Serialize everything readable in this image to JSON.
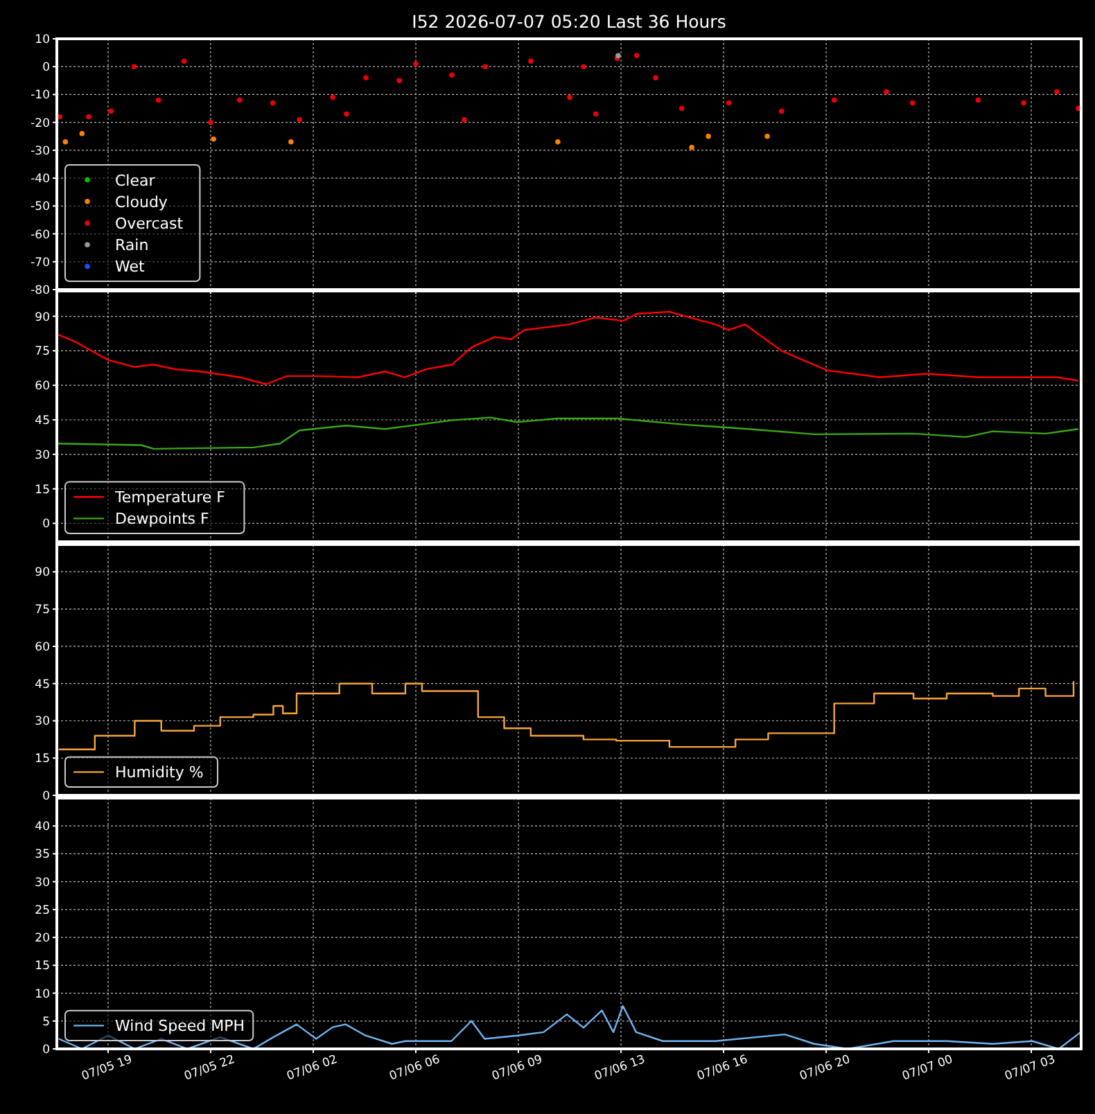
{
  "chart_data": [
    {
      "type": "scatter",
      "title": "I52 2026-07-07 05:20 Last 36 Hours",
      "xlim": [
        "2026-07-05T17:24",
        "2026-07-07T05:21"
      ],
      "xticks": [
        {
          "value": "2026-07-05T19:12",
          "label": null
        },
        {
          "value": "2026-07-05T22:48",
          "label": null
        },
        {
          "value": "2026-07-06T02:24",
          "label": null
        },
        {
          "value": "2026-07-06T06:00",
          "label": null
        },
        {
          "value": "2026-07-06T09:36",
          "label": null
        },
        {
          "value": "2026-07-06T13:12",
          "label": null
        },
        {
          "value": "2026-07-06T16:48",
          "label": null
        },
        {
          "value": "2026-07-06T20:24",
          "label": null
        },
        {
          "value": "2026-07-07T00:00",
          "label": null
        },
        {
          "value": "2026-07-07T03:36",
          "label": null
        }
      ],
      "ylim": [
        -80,
        10
      ],
      "yticks": [
        -80,
        -70,
        -60,
        -50,
        -40,
        -30,
        -20,
        -10,
        0,
        10
      ],
      "grid": true,
      "legend": "bottom left",
      "marker": "circle",
      "tick_labels": "y",
      "series": [
        {
          "name": "Clear",
          "color": "#00c000"
        },
        {
          "name": "Cloudy",
          "color": "#ff8000",
          "x": [
            "2026-07-05T17:42",
            "2026-07-05T18:17",
            "2026-07-05T22:54",
            "2026-07-06T01:37",
            "2026-07-06T10:59",
            "2026-07-06T15:41",
            "2026-07-06T16:16",
            "2026-07-06T18:20"
          ],
          "values": [
            -27,
            -24,
            -26,
            -27,
            -27,
            -29,
            -25,
            -25
          ]
        },
        {
          "name": "Overcast",
          "color": "#ee0000",
          "x": [
            "2026-07-05T17:30",
            "2026-07-05T18:31",
            "2026-07-05T19:18",
            "2026-07-05T20:07",
            "2026-07-05T20:58",
            "2026-07-05T21:52",
            "2026-07-05T22:48",
            "2026-07-05T23:49",
            "2026-07-06T00:59",
            "2026-07-06T01:55",
            "2026-07-06T03:05",
            "2026-07-06T03:34",
            "2026-07-06T04:15",
            "2026-07-06T05:25",
            "2026-07-06T06:00",
            "2026-07-06T07:16",
            "2026-07-06T07:42",
            "2026-07-06T08:26",
            "2026-07-06T10:02",
            "2026-07-06T11:24",
            "2026-07-06T11:53",
            "2026-07-06T12:19",
            "2026-07-06T13:04",
            "2026-07-06T13:45",
            "2026-07-06T14:25",
            "2026-07-06T15:20",
            "2026-07-06T16:59",
            "2026-07-06T18:50",
            "2026-07-06T20:41",
            "2026-07-06T22:31",
            "2026-07-06T23:26",
            "2026-07-07T01:44",
            "2026-07-07T03:20",
            "2026-07-07T04:30",
            "2026-07-07T05:15"
          ],
          "values": [
            -18,
            -18,
            -16,
            0,
            -12,
            2,
            -20,
            -12,
            -13,
            -19,
            -11,
            -17,
            -4,
            -5,
            1,
            -3,
            -19,
            0,
            2,
            -11,
            0,
            -17,
            3,
            4,
            -4,
            -15,
            -13,
            -16,
            -12,
            -9,
            -13,
            -12,
            -13,
            -9,
            -15
          ]
        },
        {
          "name": "Rain",
          "color": "#9a9a9a",
          "x": [
            "2026-07-06T13:06"
          ],
          "values": [
            4
          ]
        },
        {
          "name": "Wet",
          "color": "#1f4fff"
        }
      ]
    },
    {
      "type": "line",
      "xlim": [
        "2026-07-05T17:24",
        "2026-07-07T05:21"
      ],
      "xticks": [
        {
          "value": "2026-07-05T19:12",
          "label": null
        },
        {
          "value": "2026-07-05T22:48",
          "label": null
        },
        {
          "value": "2026-07-06T02:24",
          "label": null
        },
        {
          "value": "2026-07-06T06:00",
          "label": null
        },
        {
          "value": "2026-07-06T09:36",
          "label": null
        },
        {
          "value": "2026-07-06T13:12",
          "label": null
        },
        {
          "value": "2026-07-06T16:48",
          "label": null
        },
        {
          "value": "2026-07-06T20:24",
          "label": null
        },
        {
          "value": "2026-07-07T00:00",
          "label": null
        },
        {
          "value": "2026-07-07T03:36",
          "label": null
        }
      ],
      "ylim": [
        -8,
        101
      ],
      "yticks": [
        0,
        15,
        30,
        45,
        60,
        75,
        90
      ],
      "grid": true,
      "legend": "bottom left",
      "tick_labels": "y",
      "series": [
        {
          "name": "Temperature F",
          "color": "#ff0000",
          "x": [
            "2026-07-05T17:27",
            "2026-07-05T18:02",
            "2026-07-05T19:12",
            "2026-07-05T20:07",
            "2026-07-05T20:48",
            "2026-07-05T21:32",
            "2026-07-05T22:27",
            "2026-07-05T23:49",
            "2026-07-06T00:45",
            "2026-07-06T01:28",
            "2026-07-06T02:35",
            "2026-07-06T03:58",
            "2026-07-06T04:55",
            "2026-07-06T05:36",
            "2026-07-06T06:22",
            "2026-07-06T07:16",
            "2026-07-06T07:57",
            "2026-07-06T08:46",
            "2026-07-06T09:21",
            "2026-07-06T09:48",
            "2026-07-06T11:24",
            "2026-07-06T12:19",
            "2026-07-06T13:17",
            "2026-07-06T13:44",
            "2026-07-06T14:53",
            "2026-07-06T16:30",
            "2026-07-06T16:59",
            "2026-07-06T17:33",
            "2026-07-06T18:50",
            "2026-07-06T20:26",
            "2026-07-06T22:17",
            "2026-07-06T23:57",
            "2026-07-07T01:44",
            "2026-07-07T03:06",
            "2026-07-07T04:30",
            "2026-07-07T05:15"
          ],
          "values": [
            82,
            79,
            71,
            68,
            69,
            67,
            66,
            63.5,
            60.5,
            64,
            64,
            63.5,
            66,
            63.5,
            67,
            69,
            76.5,
            81,
            80,
            84,
            86.5,
            89.5,
            88,
            91,
            92,
            86.5,
            84,
            86.5,
            75,
            66.5,
            63.5,
            65,
            63.5,
            63.5,
            63.5,
            62
          ]
        },
        {
          "name": "Dewpoints F",
          "color": "#3aa815",
          "x": [
            "2026-07-05T17:27",
            "2026-07-05T20:22",
            "2026-07-05T20:48",
            "2026-07-06T00:18",
            "2026-07-06T01:14",
            "2026-07-06T01:55",
            "2026-07-06T03:34",
            "2026-07-06T04:55",
            "2026-07-06T07:16",
            "2026-07-06T08:37",
            "2026-07-06T09:33",
            "2026-07-06T10:58",
            "2026-07-06T13:04",
            "2026-07-06T15:21",
            "2026-07-06T17:40",
            "2026-07-06T20:00",
            "2026-07-06T23:28",
            "2026-07-07T01:19",
            "2026-07-07T02:15",
            "2026-07-07T04:06",
            "2026-07-07T05:15"
          ],
          "values": [
            34.7,
            34,
            32.4,
            33,
            34.7,
            40.4,
            42.5,
            41,
            44.8,
            46,
            44,
            45.6,
            45.6,
            43,
            41,
            38.7,
            39,
            37.5,
            40,
            39,
            41
          ]
        }
      ]
    },
    {
      "type": "step",
      "xlim": [
        "2026-07-05T17:24",
        "2026-07-07T05:21"
      ],
      "xticks": [
        {
          "value": "2026-07-05T19:12",
          "label": null
        },
        {
          "value": "2026-07-05T22:48",
          "label": null
        },
        {
          "value": "2026-07-06T02:24",
          "label": null
        },
        {
          "value": "2026-07-06T06:00",
          "label": null
        },
        {
          "value": "2026-07-06T09:36",
          "label": null
        },
        {
          "value": "2026-07-06T13:12",
          "label": null
        },
        {
          "value": "2026-07-06T16:48",
          "label": null
        },
        {
          "value": "2026-07-06T20:24",
          "label": null
        },
        {
          "value": "2026-07-07T00:00",
          "label": null
        },
        {
          "value": "2026-07-07T03:36",
          "label": null
        }
      ],
      "ylim": [
        0,
        101
      ],
      "yticks": [
        0,
        15,
        30,
        45,
        60,
        75,
        90
      ],
      "grid": true,
      "legend": "bottom left",
      "tick_labels": "y",
      "series": [
        {
          "name": "Humidity %",
          "color": "#f7a53a",
          "x": [
            "2026-07-05T17:28",
            "2026-07-05T18:44",
            "2026-07-05T20:08",
            "2026-07-05T21:04",
            "2026-07-05T22:13",
            "2026-07-05T23:08",
            "2026-07-06T00:18",
            "2026-07-06T01:00",
            "2026-07-06T01:20",
            "2026-07-06T01:49",
            "2026-07-06T03:19",
            "2026-07-06T04:28",
            "2026-07-06T05:38",
            "2026-07-06T06:13",
            "2026-07-06T07:15",
            "2026-07-06T08:11",
            "2026-07-06T09:06",
            "2026-07-06T10:02",
            "2026-07-06T11:53",
            "2026-07-06T13:02",
            "2026-07-06T14:54",
            "2026-07-06T17:13",
            "2026-07-06T18:22",
            "2026-07-06T20:41",
            "2026-07-06T22:05",
            "2026-07-06T23:28",
            "2026-07-07T00:38",
            "2026-07-07T02:15",
            "2026-07-07T03:10",
            "2026-07-07T04:06",
            "2026-07-07T05:05"
          ],
          "values": [
            18.5,
            24,
            30,
            26,
            28,
            31.5,
            32.5,
            36,
            33,
            41,
            45,
            41,
            45,
            42,
            42,
            31.5,
            27,
            24,
            22.5,
            22,
            19.5,
            22.5,
            25,
            37,
            41,
            39,
            41,
            40,
            43,
            40,
            46
          ]
        }
      ]
    },
    {
      "type": "line",
      "xlim": [
        "2026-07-05T17:24",
        "2026-07-07T05:21"
      ],
      "xticks": [
        {
          "value": "2026-07-05T19:12",
          "label": "07/05 19"
        },
        {
          "value": "2026-07-05T22:48",
          "label": "07/05 22"
        },
        {
          "value": "2026-07-06T02:24",
          "label": "07/06 02"
        },
        {
          "value": "2026-07-06T06:00",
          "label": "07/06 06"
        },
        {
          "value": "2026-07-06T09:36",
          "label": "07/06 09"
        },
        {
          "value": "2026-07-06T13:12",
          "label": "07/06 13"
        },
        {
          "value": "2026-07-06T16:48",
          "label": "07/06 16"
        },
        {
          "value": "2026-07-06T20:24",
          "label": "07/06 20"
        },
        {
          "value": "2026-07-07T00:00",
          "label": "07/07 00"
        },
        {
          "value": "2026-07-07T03:36",
          "label": "07/07 03"
        }
      ],
      "ylim": [
        0,
        45
      ],
      "yticks": [
        0,
        5,
        10,
        15,
        20,
        25,
        30,
        35,
        40
      ],
      "grid": true,
      "legend": "bottom left",
      "series": [
        {
          "name": "Wind Speed MPH",
          "color": "#6fb6f2",
          "x": [
            "2026-07-05T17:28",
            "2026-07-05T18:17",
            "2026-07-05T19:12",
            "2026-07-05T20:08",
            "2026-07-05T21:04",
            "2026-07-05T21:59",
            "2026-07-05T23:08",
            "2026-07-06T00:18",
            "2026-07-06T01:00",
            "2026-07-06T01:49",
            "2026-07-06T02:30",
            "2026-07-06T03:05",
            "2026-07-06T03:32",
            "2026-07-06T04:14",
            "2026-07-06T05:10",
            "2026-07-06T05:38",
            "2026-07-06T07:15",
            "2026-07-06T07:57",
            "2026-07-06T08:25",
            "2026-07-06T09:34",
            "2026-07-06T10:29",
            "2026-07-06T11:18",
            "2026-07-06T11:53",
            "2026-07-06T12:32",
            "2026-07-06T12:56",
            "2026-07-06T13:16",
            "2026-07-06T13:44",
            "2026-07-06T14:40",
            "2026-07-06T16:31",
            "2026-07-06T18:57",
            "2026-07-06T19:59",
            "2026-07-06T21:09",
            "2026-07-06T22:46",
            "2026-07-07T00:38",
            "2026-07-07T02:15",
            "2026-07-07T03:38",
            "2026-07-07T04:34",
            "2026-07-07T05:20"
          ],
          "values": [
            1.8,
            0,
            2.4,
            0,
            1.8,
            0,
            2.1,
            0,
            2.1,
            4.4,
            1.8,
            3.9,
            4.4,
            2.4,
            0.9,
            1.4,
            1.4,
            5,
            1.8,
            2.4,
            3,
            6.2,
            3.8,
            6.9,
            3,
            7.7,
            3,
            1.4,
            1.4,
            2.6,
            0.9,
            0,
            1.4,
            1.4,
            0.9,
            1.4,
            0,
            3
          ]
        }
      ]
    }
  ]
}
